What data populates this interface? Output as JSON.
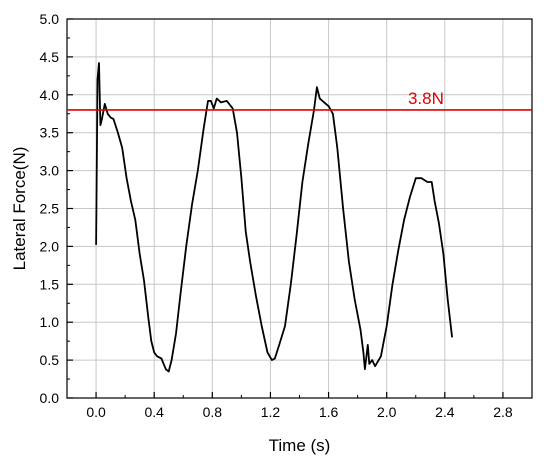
{
  "chart_data": {
    "type": "line",
    "title": "",
    "xlabel": "Time (s)",
    "ylabel": "Lateral Force(N)",
    "xlim": [
      -0.2,
      3.0
    ],
    "ylim": [
      0.0,
      5.0
    ],
    "xticks": [
      0.0,
      0.4,
      0.8,
      1.2,
      1.6,
      2.0,
      2.4,
      2.8
    ],
    "xtick_labels": [
      "0.0",
      "0.4",
      "0.8",
      "1.2",
      "1.6",
      "2.0",
      "2.4",
      "2.8"
    ],
    "yticks": [
      0.0,
      0.5,
      1.0,
      1.5,
      2.0,
      2.5,
      3.0,
      3.5,
      4.0,
      4.5,
      5.0
    ],
    "ytick_labels": [
      "0.0",
      "0.5",
      "1.0",
      "1.5",
      "2.0",
      "2.5",
      "3.0",
      "3.5",
      "4.0",
      "4.5",
      "5.0"
    ],
    "grid": true,
    "series": [
      {
        "color": "#000000",
        "x": [
          0.0,
          0.01,
          0.02,
          0.03,
          0.04,
          0.06,
          0.08,
          0.1,
          0.12,
          0.15,
          0.18,
          0.21,
          0.24,
          0.27,
          0.3,
          0.33,
          0.36,
          0.38,
          0.4,
          0.42,
          0.45,
          0.48,
          0.5,
          0.52,
          0.55,
          0.58,
          0.62,
          0.66,
          0.7,
          0.74,
          0.77,
          0.79,
          0.81,
          0.83,
          0.86,
          0.9,
          0.94,
          0.97,
          1.0,
          1.03,
          1.06,
          1.1,
          1.14,
          1.18,
          1.21,
          1.23,
          1.26,
          1.3,
          1.34,
          1.38,
          1.42,
          1.46,
          1.5,
          1.52,
          1.54,
          1.57,
          1.6,
          1.63,
          1.66,
          1.7,
          1.74,
          1.78,
          1.82,
          1.84,
          1.85,
          1.87,
          1.88,
          1.9,
          1.92,
          1.96,
          2.0,
          2.04,
          2.08,
          2.12,
          2.16,
          2.2,
          2.24,
          2.28,
          2.31,
          2.33,
          2.36,
          2.39,
          2.42,
          2.45
        ],
        "y": [
          2.02,
          4.2,
          4.42,
          3.6,
          3.68,
          3.88,
          3.75,
          3.7,
          3.68,
          3.5,
          3.3,
          2.9,
          2.6,
          2.35,
          1.9,
          1.55,
          1.05,
          0.75,
          0.6,
          0.55,
          0.52,
          0.38,
          0.35,
          0.5,
          0.85,
          1.35,
          2.0,
          2.55,
          3.0,
          3.55,
          3.92,
          3.92,
          3.82,
          3.95,
          3.9,
          3.92,
          3.82,
          3.5,
          2.9,
          2.2,
          1.8,
          1.35,
          0.95,
          0.6,
          0.5,
          0.52,
          0.7,
          0.95,
          1.5,
          2.15,
          2.85,
          3.35,
          3.8,
          4.1,
          3.95,
          3.9,
          3.85,
          3.75,
          3.3,
          2.5,
          1.8,
          1.3,
          0.9,
          0.6,
          0.38,
          0.7,
          0.45,
          0.5,
          0.42,
          0.55,
          0.95,
          1.5,
          1.95,
          2.35,
          2.65,
          2.9,
          2.9,
          2.85,
          2.85,
          2.6,
          2.3,
          1.9,
          1.3,
          0.8
        ]
      }
    ],
    "reference_lines": [
      {
        "y": 3.8,
        "color": "#e00000",
        "label": "3.8N",
        "label_x": 2.27
      }
    ]
  }
}
